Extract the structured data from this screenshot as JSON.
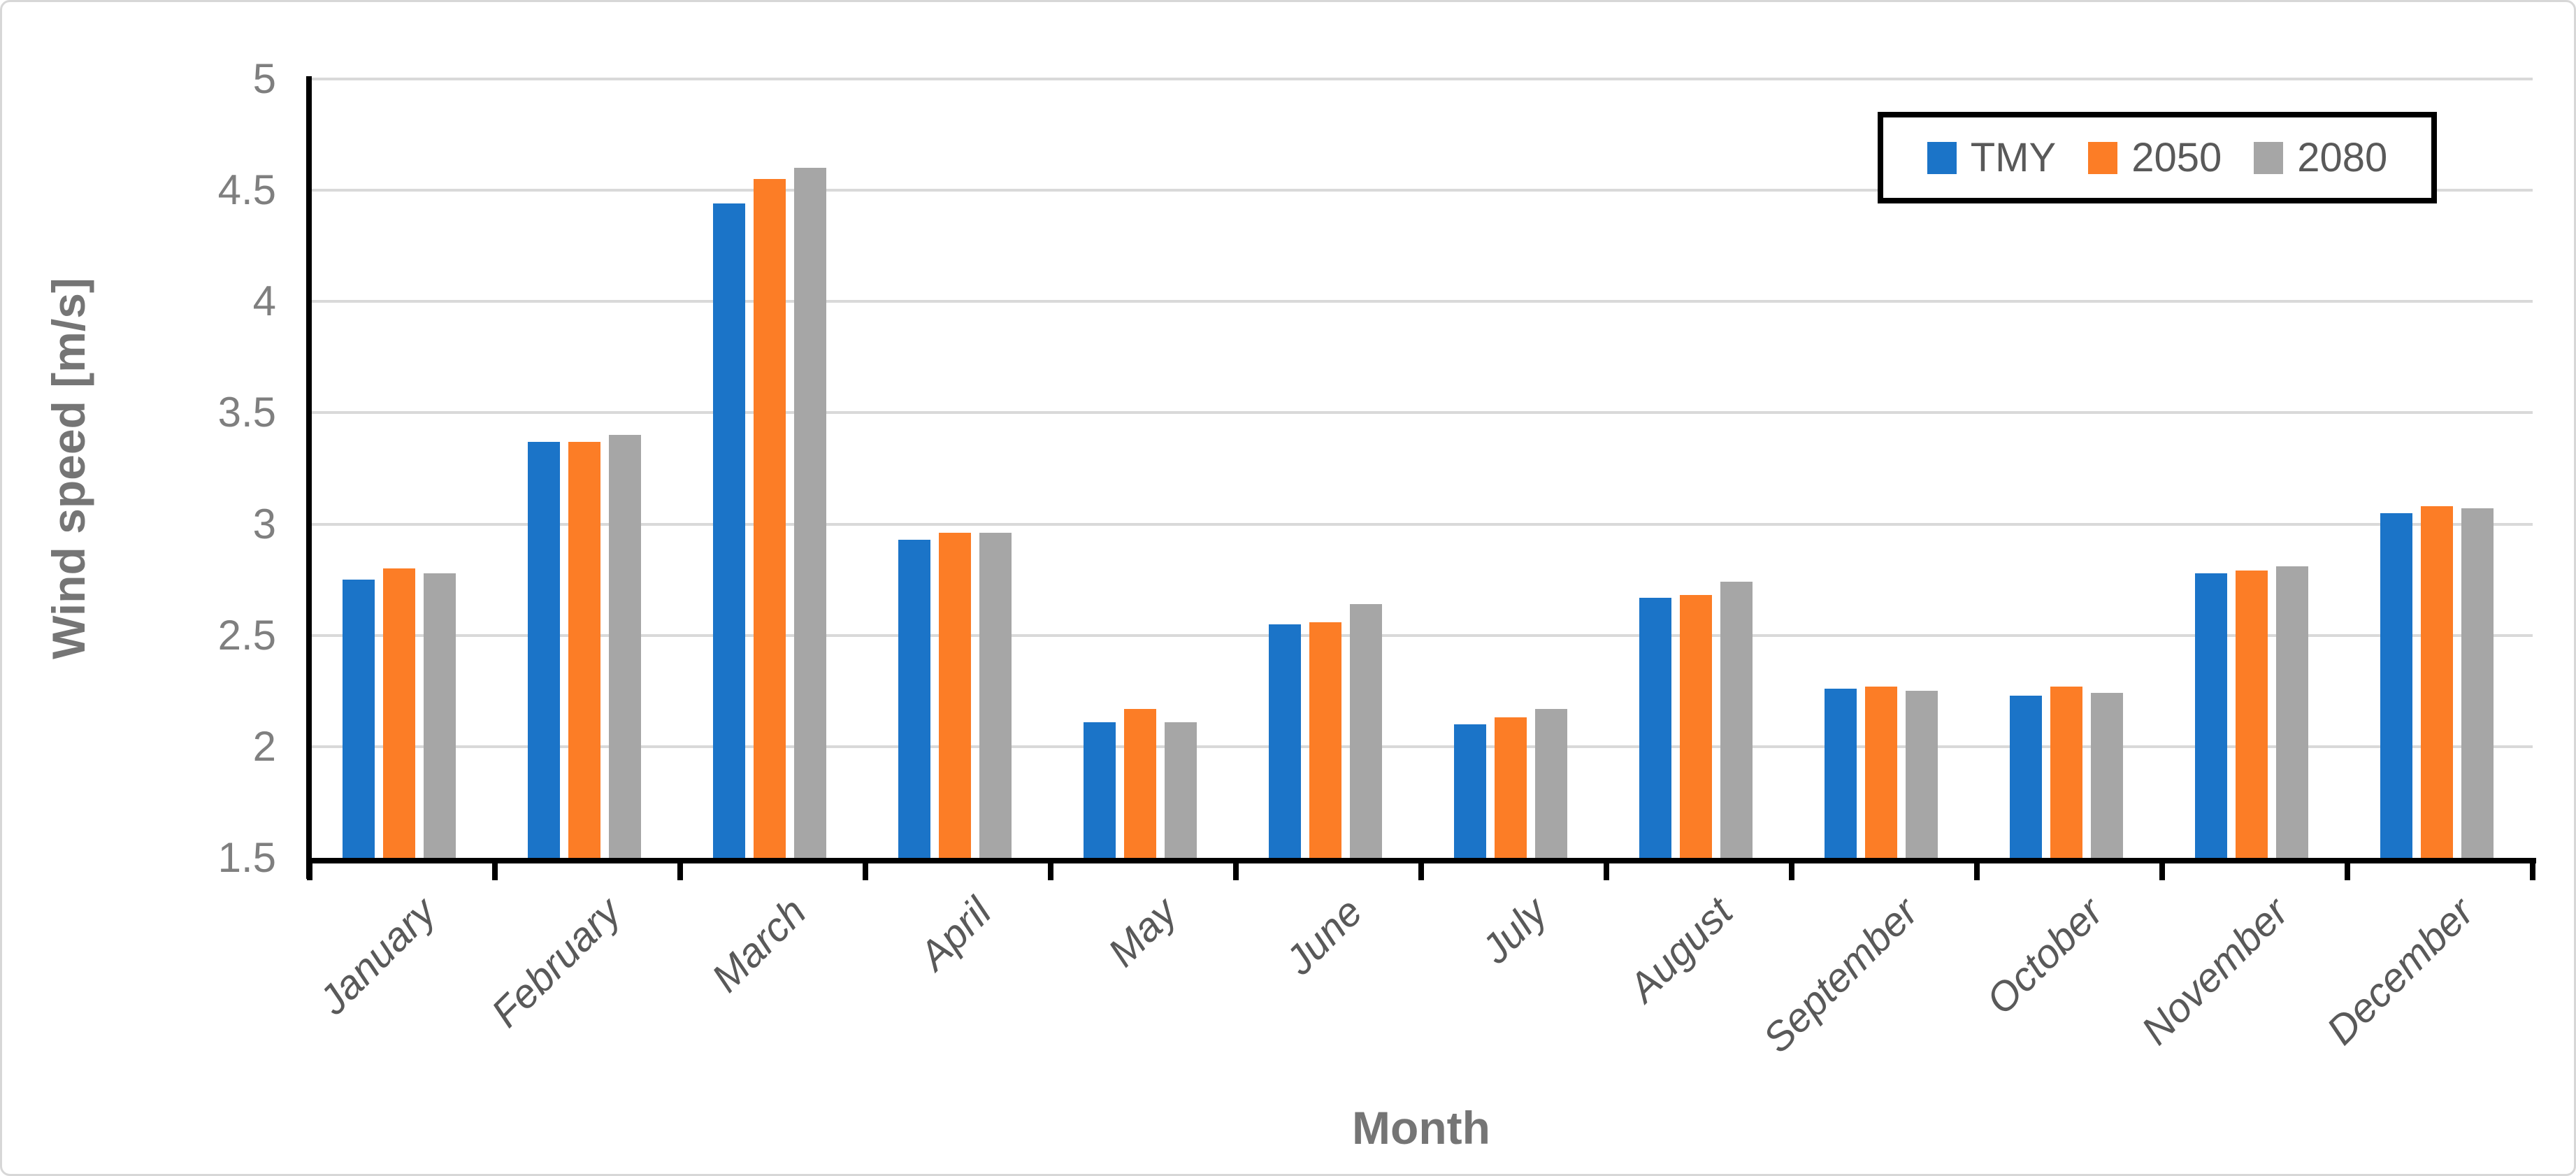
{
  "figure": {
    "background": "#ffffff",
    "border_color": "#d7d7d7"
  },
  "chart_data": {
    "type": "bar",
    "title": "",
    "categories": [
      "January",
      "February",
      "March",
      "April",
      "May",
      "June",
      "July",
      "August",
      "September",
      "October",
      "November",
      "December"
    ],
    "series": [
      {
        "name": "TMY",
        "color": "#1b74c8",
        "values": [
          2.75,
          3.37,
          4.44,
          2.93,
          2.11,
          2.55,
          2.1,
          2.67,
          2.26,
          2.23,
          2.78,
          3.05
        ]
      },
      {
        "name": "2050",
        "color": "#fc7d26",
        "values": [
          2.8,
          3.37,
          4.55,
          2.96,
          2.17,
          2.56,
          2.13,
          2.68,
          2.27,
          2.27,
          2.79,
          3.08
        ]
      },
      {
        "name": "2080",
        "color": "#a6a6a6",
        "values": [
          2.78,
          3.4,
          4.6,
          2.96,
          2.11,
          2.64,
          2.17,
          2.74,
          2.25,
          2.24,
          2.81,
          3.07
        ]
      }
    ],
    "xlabel": "Month",
    "ylabel": "Wind speed [m/s]",
    "ylim": [
      1.5,
      5
    ],
    "ytick_step": 0.5,
    "yticks": [
      "5",
      "4.5",
      "4",
      "3.5",
      "3",
      "2.5",
      "2",
      "1.5"
    ],
    "grid": "horizontal-only",
    "gridline_color": "#d9d9d9",
    "legend_position": "top-right",
    "legend_entries": [
      "TMY",
      "2050",
      "2080"
    ],
    "text_colors": {
      "tick_labels": "#7f7f7f",
      "axis_titles": "#757575",
      "category_labels": "#595959",
      "legend_labels": "#595959"
    }
  }
}
